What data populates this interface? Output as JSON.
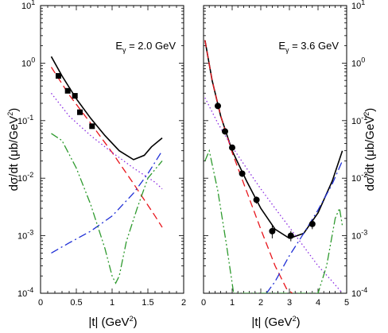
{
  "chart_data": [
    {
      "type": "line",
      "annotation": {
        "main": "E",
        "sub": "γ",
        "rest": " = 2.0 GeV"
      },
      "xlim": [
        0,
        2
      ],
      "ylim_log10": [
        -4,
        1
      ],
      "x_ticks": [
        "0",
        "0.5",
        "1",
        "1.5",
        "2"
      ],
      "y_ticks": [
        {
          "base": "10",
          "exp": "-4"
        },
        {
          "base": "10",
          "exp": "-3"
        },
        {
          "base": "10",
          "exp": "-2"
        },
        {
          "base": "10",
          "exp": "-1"
        },
        {
          "base": "10",
          "exp": "0"
        },
        {
          "base": "10",
          "exp": "1"
        }
      ],
      "y_label_side": "left",
      "series": [
        {
          "style": "solid",
          "color": "#000000",
          "x": [
            0.15,
            0.3,
            0.5,
            0.7,
            0.9,
            1.1,
            1.3,
            1.45,
            1.55,
            1.7
          ],
          "y": [
            1.3,
            0.6,
            0.24,
            0.11,
            0.055,
            0.03,
            0.021,
            0.025,
            0.035,
            0.05
          ]
        },
        {
          "style": "dashed",
          "color": "#e8141b",
          "x": [
            0.15,
            0.4,
            0.7,
            1.0,
            1.3,
            1.6,
            1.7
          ],
          "y": [
            0.85,
            0.28,
            0.09,
            0.028,
            0.008,
            0.0022,
            0.0014
          ]
        },
        {
          "style": "dotted",
          "color": "#8a2be2",
          "x": [
            0.15,
            0.4,
            0.7,
            1.0,
            1.3,
            1.6,
            1.7
          ],
          "y": [
            0.3,
            0.12,
            0.055,
            0.028,
            0.015,
            0.0085,
            0.0065
          ]
        },
        {
          "style": "dashdot",
          "color": "#1f2fd6",
          "x": [
            0.15,
            0.4,
            0.7,
            1.0,
            1.3,
            1.5,
            1.7
          ],
          "y": [
            0.0005,
            0.00075,
            0.0012,
            0.0022,
            0.0055,
            0.012,
            0.03
          ]
        },
        {
          "style": "dashdotdot",
          "color": "#2e9a2e",
          "x": [
            0.15,
            0.3,
            0.5,
            0.7,
            0.9,
            1.0,
            1.05,
            1.1,
            1.2,
            1.35,
            1.5,
            1.7
          ],
          "y": [
            0.06,
            0.045,
            0.015,
            0.0035,
            0.0006,
            0.0002,
            0.00015,
            0.0002,
            0.0008,
            0.003,
            0.01,
            0.02
          ]
        }
      ],
      "points": {
        "marker": "square",
        "x": [
          0.25,
          0.38,
          0.48,
          0.55,
          0.72
        ],
        "y": [
          0.6,
          0.33,
          0.27,
          0.14,
          0.08
        ],
        "err": [
          0.05,
          0.03,
          0.02,
          0.012,
          0.008
        ]
      }
    },
    {
      "type": "line",
      "annotation": {
        "main": "E",
        "sub": "γ",
        "rest": " = 3.6 GeV"
      },
      "xlim": [
        0,
        5
      ],
      "ylim_log10": [
        -4,
        1
      ],
      "x_ticks": [
        "0",
        "1",
        "2",
        "3",
        "4",
        "5"
      ],
      "y_ticks": [
        {
          "base": "10",
          "exp": "-4"
        },
        {
          "base": "10",
          "exp": "-3"
        },
        {
          "base": "10",
          "exp": "-2"
        },
        {
          "base": "10",
          "exp": "-1"
        },
        {
          "base": "10",
          "exp": "0"
        },
        {
          "base": "10",
          "exp": "1"
        }
      ],
      "y_label_side": "right",
      "series": [
        {
          "style": "solid",
          "color": "#000000",
          "x": [
            0.05,
            0.3,
            0.6,
            1.0,
            1.5,
            2.0,
            2.5,
            3.0,
            3.5,
            4.0,
            4.5,
            4.85
          ],
          "y": [
            2.5,
            0.5,
            0.12,
            0.03,
            0.009,
            0.003,
            0.0013,
            0.0009,
            0.0011,
            0.0025,
            0.009,
            0.03
          ]
        },
        {
          "style": "dashed",
          "color": "#e8141b",
          "x": [
            0.05,
            0.3,
            0.6,
            1.0,
            1.5,
            2.0,
            2.5,
            2.9,
            3.1
          ],
          "y": [
            2.5,
            0.5,
            0.12,
            0.028,
            0.006,
            0.0013,
            0.0003,
            0.00012,
            0.0001
          ]
        },
        {
          "style": "dotted",
          "color": "#8a2be2",
          "x": [
            0.05,
            0.5,
            1.0,
            1.5,
            2.0,
            2.5,
            3.0,
            3.5,
            4.0,
            4.5,
            4.85
          ],
          "y": [
            0.25,
            0.09,
            0.035,
            0.015,
            0.0065,
            0.003,
            0.0014,
            0.00065,
            0.0003,
            0.00016,
            0.0001
          ]
        },
        {
          "style": "dashdot",
          "color": "#1f2fd6",
          "x": [
            2.2,
            2.5,
            3.0,
            3.5,
            4.0,
            4.5,
            4.85
          ],
          "y": [
            0.0001,
            0.00016,
            0.00045,
            0.0011,
            0.0028,
            0.008,
            0.02
          ]
        },
        {
          "style": "dashdotdot",
          "color": "#2e9a2e",
          "x": [
            0.05,
            0.2,
            0.5,
            0.8,
            1.0,
            1.05,
            4.0,
            4.3,
            4.6,
            4.75,
            4.85
          ],
          "y": [
            0.02,
            0.03,
            0.006,
            0.0007,
            0.00015,
            0.0001,
            0.0001,
            0.0003,
            0.002,
            0.003,
            0.0015
          ]
        }
      ],
      "points": {
        "marker": "circle",
        "x": [
          0.5,
          0.75,
          1.0,
          1.35,
          1.85,
          2.4,
          3.05,
          3.8
        ],
        "y": [
          0.18,
          0.065,
          0.034,
          0.012,
          0.0042,
          0.0012,
          0.001,
          0.0016
        ],
        "err": [
          0.02,
          0.008,
          0.004,
          0.0015,
          0.0006,
          0.0003,
          0.0002,
          0.0003
        ]
      }
    }
  ],
  "labels": {
    "y_main": "dσ/dt  (μb/GeV",
    "y_sup": "2",
    "y_close": ")",
    "x_main": "|t|  (GeV",
    "x_sup": "2",
    "x_close": ")"
  }
}
